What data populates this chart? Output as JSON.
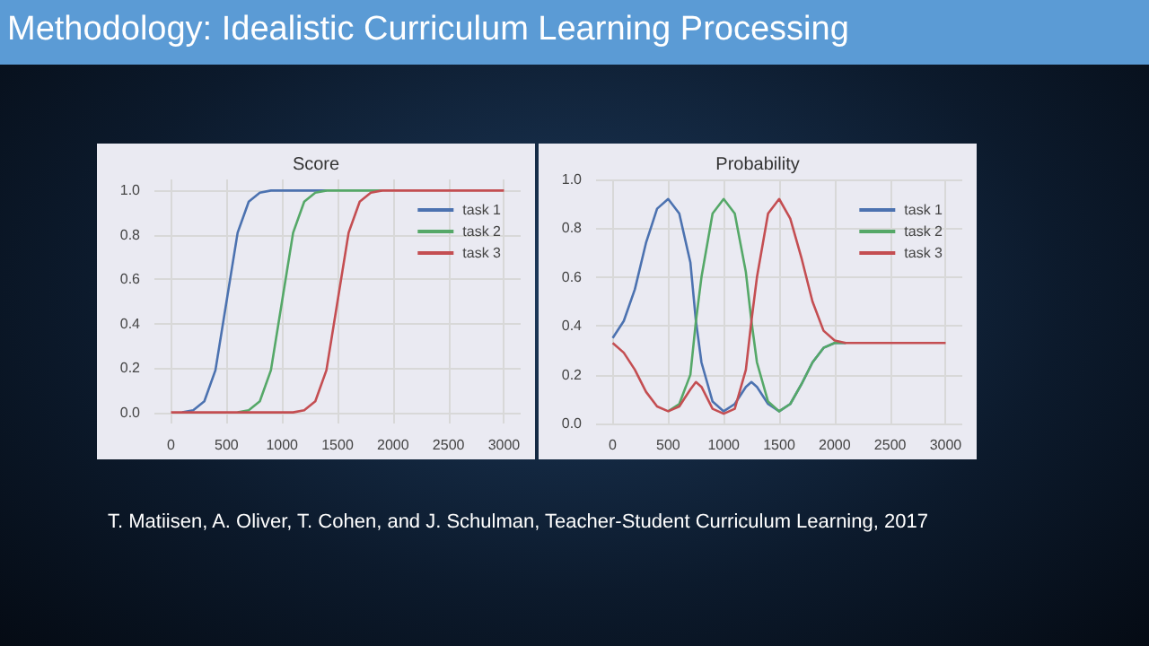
{
  "chart_data": [
    {
      "type": "other",
      "title": "Methodology: Idealistic Curriculum Learning Processing"
    },
    {
      "type": "line",
      "title": "Score",
      "x": [
        0,
        100,
        200,
        300,
        400,
        500,
        600,
        700,
        800,
        900,
        1000,
        1100,
        1200,
        1300,
        1400,
        1500,
        1600,
        1700,
        1800,
        1900,
        2000,
        2100,
        2200,
        2300,
        2400,
        2500,
        2600,
        2700,
        2800,
        2900,
        3000
      ],
      "series": [
        {
          "name": "task 1",
          "color": "#4c72b0",
          "values": [
            null,
            0,
            0.01,
            0.05,
            0.19,
            0.5,
            0.81,
            0.95,
            0.99,
            1,
            1,
            1,
            1,
            1,
            1,
            null,
            null,
            null,
            null,
            null,
            null,
            null,
            null,
            null,
            null,
            null,
            null,
            null,
            null,
            null,
            null
          ]
        },
        {
          "name": "task 2",
          "color": "#55a868",
          "values": [
            null,
            null,
            null,
            null,
            null,
            null,
            0,
            0.01,
            0.05,
            0.19,
            0.5,
            0.81,
            0.95,
            0.99,
            1,
            1,
            1,
            1,
            1,
            1,
            null,
            null,
            null,
            null,
            null,
            null,
            null,
            null,
            null,
            null,
            null
          ]
        },
        {
          "name": "task 3",
          "color": "#c44e52",
          "values": [
            0,
            0,
            0,
            0,
            0,
            0,
            0,
            0,
            0,
            0,
            0,
            0,
            0.01,
            0.05,
            0.19,
            0.5,
            0.81,
            0.95,
            0.99,
            1,
            1,
            1,
            1,
            1,
            1,
            1,
            1,
            1,
            1,
            1,
            1
          ]
        }
      ],
      "xlim": [
        -150,
        3150
      ],
      "xticks": [
        0,
        500,
        1000,
        1500,
        2000,
        2500,
        3000
      ],
      "ylim": [
        -0.05,
        1.05
      ],
      "yticks": [
        {
          "value": 0,
          "label": "0.0"
        },
        {
          "value": 0.2,
          "label": "0.2"
        },
        {
          "value": 0.4,
          "label": "0.4"
        },
        {
          "value": 0.6,
          "label": "0.6"
        },
        {
          "value": 0.8,
          "label": "0.8"
        },
        {
          "value": 1,
          "label": "1.0"
        }
      ],
      "grid": true,
      "legend": "top right",
      "marker": "none",
      "line_style": "solid"
    },
    {
      "type": "line",
      "title": "Probability",
      "x": [
        0,
        100,
        200,
        300,
        400,
        500,
        600,
        700,
        750,
        800,
        900,
        1000,
        1100,
        1200,
        1250,
        1300,
        1400,
        1500,
        1600,
        1700,
        1800,
        1900,
        2000,
        2100,
        2500,
        3000
      ],
      "series": [
        {
          "name": "task 1",
          "color": "#4c72b0",
          "values": [
            0.35,
            0.42,
            0.55,
            0.74,
            0.88,
            0.92,
            0.86,
            0.66,
            0.42,
            0.25,
            0.09,
            0.05,
            0.08,
            0.15,
            0.17,
            0.15,
            0.08,
            0.05,
            0.08,
            0.16,
            0.25,
            0.31,
            0.33,
            0.33,
            null,
            null
          ]
        },
        {
          "name": "task 2",
          "color": "#55a868",
          "values": [
            null,
            null,
            null,
            null,
            null,
            0.05,
            0.08,
            0.2,
            0.42,
            0.6,
            0.86,
            0.92,
            0.86,
            0.62,
            0.42,
            0.25,
            0.09,
            0.05,
            0.08,
            0.16,
            0.25,
            0.31,
            0.33,
            0.33,
            null,
            null
          ]
        },
        {
          "name": "task 3",
          "color": "#c44e52",
          "values": [
            0.33,
            0.29,
            0.22,
            0.13,
            0.07,
            0.05,
            0.07,
            0.14,
            0.17,
            0.15,
            0.06,
            0.04,
            0.06,
            0.22,
            0.42,
            0.6,
            0.86,
            0.92,
            0.84,
            0.68,
            0.5,
            0.38,
            0.34,
            0.33,
            0.33,
            0.33
          ]
        }
      ],
      "xlim": [
        -150,
        3150
      ],
      "xticks": [
        0,
        500,
        1000,
        1500,
        2000,
        2500,
        3000
      ],
      "ylim": [
        0,
        1
      ],
      "yticks": [
        {
          "value": 0,
          "label": "0.0"
        },
        {
          "value": 0.2,
          "label": "0.2"
        },
        {
          "value": 0.4,
          "label": "0.4"
        },
        {
          "value": 0.6,
          "label": "0.6"
        },
        {
          "value": 0.8,
          "label": "0.8"
        },
        {
          "value": 1,
          "label": "1.0"
        }
      ],
      "grid": true,
      "legend": "top right",
      "marker": "none",
      "line_style": "solid"
    },
    {
      "type": "other",
      "annotations": [
        "T. Matiisen, A. Oliver, T. Cohen, and J. Schulman, Teacher-Student Curriculum Learning, 2017"
      ]
    }
  ]
}
